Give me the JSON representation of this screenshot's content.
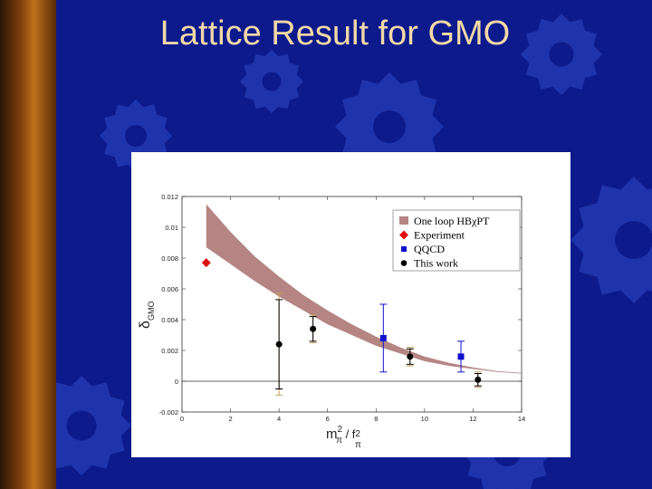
{
  "slide": {
    "title": "Lattice Result for GMO",
    "colors": {
      "background": "#0d1a8c",
      "title": "#f3d9a6",
      "gear": "#2f49c4"
    }
  },
  "chart_data": {
    "type": "scatter",
    "title": "",
    "xlabel": {
      "main": "m",
      "sub1": "π",
      "sup1": "2",
      "mid": " / f",
      "sub2": "π",
      "sup2": "2"
    },
    "ylabel": {
      "main": "δ",
      "sub": "GMO"
    },
    "xlim": [
      0,
      14
    ],
    "ylim": [
      -0.002,
      0.012
    ],
    "xticks": [
      0,
      2,
      4,
      6,
      8,
      10,
      12,
      14
    ],
    "yticks": [
      -0.002,
      0,
      0.002,
      0.004,
      0.006,
      0.008,
      0.01,
      0.012
    ],
    "ytick_labels": [
      "-0.002",
      "0",
      "0.002",
      "0.004",
      "0.006",
      "0.008",
      "0.01",
      "0.012"
    ],
    "legend_position": "top-right",
    "legend": [
      {
        "name": "One loop HBχPT",
        "marker": "band",
        "color": "#b58583"
      },
      {
        "name": "Experiment",
        "marker": "diamond",
        "color": "#e01010"
      },
      {
        "name": "QQCD",
        "marker": "square",
        "color": "#1010d0"
      },
      {
        "name": "This work",
        "marker": "circle",
        "color": "#000000"
      }
    ],
    "band": {
      "x": [
        1,
        2,
        3,
        4,
        5,
        6,
        7,
        8,
        9,
        10,
        11,
        12,
        13,
        14
      ],
      "upper": [
        0.0115,
        0.0097,
        0.0081,
        0.0068,
        0.0056,
        0.0046,
        0.0037,
        0.0029,
        0.0022,
        0.0016,
        0.0012,
        0.0009,
        0.00065,
        0.00055
      ],
      "lower": [
        0.0087,
        0.0076,
        0.0065,
        0.0055,
        0.0046,
        0.0037,
        0.003,
        0.0023,
        0.0018,
        0.0013,
        0.001,
        0.0008,
        0.0006,
        0.0005
      ]
    },
    "experiment": [
      {
        "x": 1.0,
        "y": 0.0077
      }
    ],
    "qqcd": [
      {
        "x": 8.3,
        "y": 0.0028,
        "yerr_low": 0.0006,
        "yerr_high": 0.005
      },
      {
        "x": 11.5,
        "y": 0.0016,
        "yerr_low": 0.0006,
        "yerr_high": 0.0026
      }
    ],
    "this_work": [
      {
        "x": 4.0,
        "y": 0.0024,
        "yerr_low": -0.0005,
        "yerr_high": 0.0053,
        "sys_low": -0.0009,
        "sys_high": 0.0057
      },
      {
        "x": 5.4,
        "y": 0.0034,
        "yerr_low": 0.0026,
        "yerr_high": 0.0042,
        "sys_low": 0.0025,
        "sys_high": 0.0043
      },
      {
        "x": 9.4,
        "y": 0.0016,
        "yerr_low": 0.0011,
        "yerr_high": 0.0021,
        "sys_low": 0.001,
        "sys_high": 0.0022
      },
      {
        "x": 12.2,
        "y": 0.0001,
        "yerr_low": -0.0003,
        "yerr_high": 0.0005,
        "sys_low": -0.0004,
        "sys_high": 0.0006
      }
    ]
  }
}
